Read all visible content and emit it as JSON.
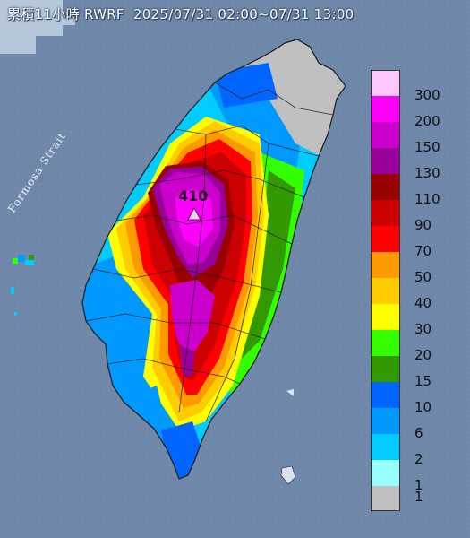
{
  "title": {
    "product": "累積11小時 RWRF",
    "period": "2025/07/31 02:00~07/31 13:00"
  },
  "map": {
    "sea_label": "Formosa Strait",
    "peak": {
      "value": "410",
      "icon": "triangle-marker-icon"
    }
  },
  "legend": {
    "items": [
      {
        "label": "300",
        "color": "#ffc6ff"
      },
      {
        "label": "200",
        "color": "#ff00ff"
      },
      {
        "label": "150",
        "color": "#cc00cc"
      },
      {
        "label": "130",
        "color": "#990099"
      },
      {
        "label": "110",
        "color": "#990000"
      },
      {
        "label": "90",
        "color": "#cc0000"
      },
      {
        "label": "70",
        "color": "#ff0000"
      },
      {
        "label": "50",
        "color": "#ff9900"
      },
      {
        "label": "40",
        "color": "#ffcc00"
      },
      {
        "label": "30",
        "color": "#ffff00"
      },
      {
        "label": "20",
        "color": "#33ff00"
      },
      {
        "label": "15",
        "color": "#339900"
      },
      {
        "label": "10",
        "color": "#0066ff"
      },
      {
        "label": "6",
        "color": "#0099ff"
      },
      {
        "label": "2",
        "color": "#00ccff"
      },
      {
        "label": "1",
        "color": "#99ffff"
      },
      {
        "label": "",
        "color": "#c0c0c0"
      }
    ]
  }
}
